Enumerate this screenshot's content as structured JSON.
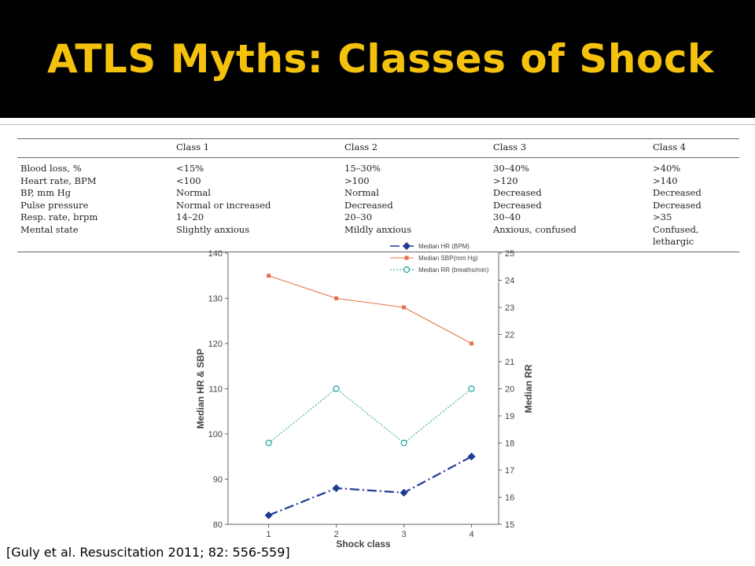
{
  "slide": {
    "title": "ATLS Myths: Classes of Shock",
    "citation": "[Guly et al. Resuscitation 2011; 82: 556-559]"
  },
  "colors": {
    "title": "#f4c20d",
    "background": "#000000",
    "hr": "#1f3a93",
    "sbp": "#e8704a",
    "rr": "#1aa39a"
  },
  "table": {
    "headers": [
      "",
      "Class 1",
      "Class 2",
      "Class 3",
      "Class 4"
    ],
    "rows": [
      [
        "Blood loss, %",
        "<15%",
        "15–30%",
        "30–40%",
        ">40%"
      ],
      [
        "Heart rate, BPM",
        "<100",
        ">100",
        ">120",
        ">140"
      ],
      [
        "BP, mm Hg",
        "Normal",
        "Normal",
        "Decreased",
        "Decreased"
      ],
      [
        "Pulse pressure",
        "Normal or increased",
        "Decreased",
        "Decreased",
        "Decreased"
      ],
      [
        "Resp. rate, brpm",
        "14–20",
        "20–30",
        "30–40",
        ">35"
      ],
      [
        "Mental state",
        "Slightly anxious",
        "Mildly anxious",
        "Anxious, confused",
        "Confused, lethargic"
      ]
    ]
  },
  "chart_data": {
    "type": "line",
    "xlabel": "Shock class",
    "ylabel": "Median HR & SBP",
    "y2label": "Median RR",
    "x": [
      1,
      2,
      3,
      4
    ],
    "xticks": [
      "1",
      "2",
      "3",
      "4"
    ],
    "ylim": [
      80,
      140
    ],
    "yticks": [
      "80",
      "90",
      "100",
      "110",
      "120",
      "130",
      "140"
    ],
    "y2lim": [
      15,
      25
    ],
    "y2ticks": [
      "15",
      "16",
      "17",
      "18",
      "19",
      "20",
      "21",
      "22",
      "23",
      "24",
      "25"
    ],
    "legend_position": "top-right",
    "grid": false,
    "series": [
      {
        "name": "Median HR (BPM)",
        "axis": "left",
        "values": [
          82,
          88,
          87,
          95
        ],
        "color": "#1f3a93",
        "dash": "dashdot",
        "marker": "diamond"
      },
      {
        "name": "Median SBP(mm Hg)",
        "axis": "left",
        "values": [
          135,
          130,
          128,
          120
        ],
        "color": "#e8704a",
        "dash": "solid",
        "marker": "square"
      },
      {
        "name": "Median RR (breaths/min)",
        "axis": "right",
        "values": [
          18,
          20,
          18,
          20
        ],
        "color": "#1aa39a",
        "dash": "dotted",
        "marker": "open-circle"
      }
    ]
  }
}
